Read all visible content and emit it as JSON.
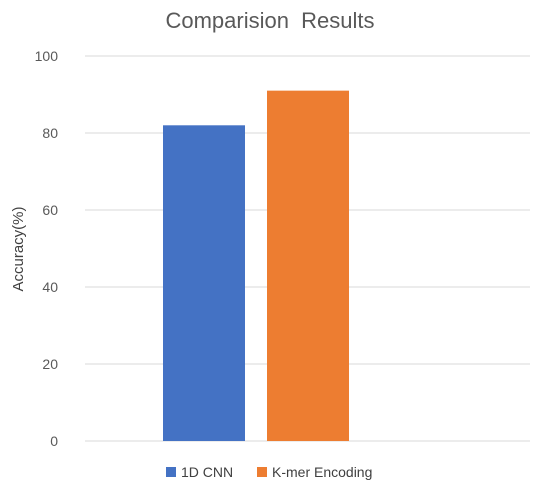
{
  "chart_data": {
    "type": "bar",
    "title": "Comparision  Results",
    "xlabel": "",
    "ylabel": "Accuracy(%)",
    "ylim": [
      0,
      100
    ],
    "yticks": [
      0,
      20,
      40,
      60,
      80,
      100
    ],
    "grid": true,
    "legend_position": "bottom",
    "categories": [
      ""
    ],
    "series": [
      {
        "name": "1D CNN",
        "values": [
          82
        ],
        "color": "#4472C4"
      },
      {
        "name": "K-mer Encoding",
        "values": [
          91
        ],
        "color": "#ED7D31"
      }
    ]
  }
}
